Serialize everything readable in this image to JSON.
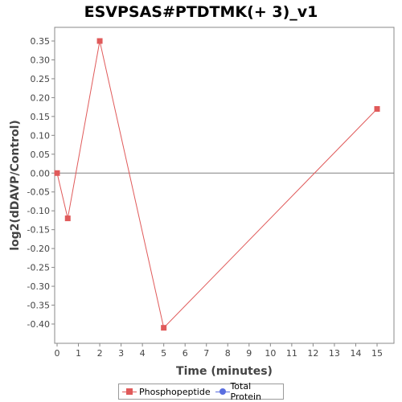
{
  "chart_data": {
    "type": "line",
    "title": "ESVPSAS#PTDTMK(+ 3)_v1",
    "xlabel": "Time (minutes)",
    "ylabel": "log2(dDAVP/Control)",
    "xlim": [
      0,
      15.6
    ],
    "ylim": [
      -0.45,
      0.38
    ],
    "x_ticks": [
      0,
      1,
      2,
      3,
      4,
      5,
      6,
      7,
      8,
      9,
      10,
      11,
      12,
      13,
      14,
      15
    ],
    "y_ticks": [
      0.35,
      0.3,
      0.25,
      0.2,
      0.15,
      0.1,
      0.05,
      0.0,
      -0.05,
      -0.1,
      -0.15,
      -0.2,
      -0.25,
      -0.3,
      -0.35,
      -0.4
    ],
    "y_tick_labels": [
      "0.35",
      "0.30",
      "0.25",
      "0.20",
      "0.15",
      "0.10",
      "0.05",
      "0.00",
      "-0.05",
      "-0.10",
      "-0.15",
      "-0.20",
      "-0.25",
      "-0.30",
      "-0.35",
      "-0.40"
    ],
    "grid": false,
    "zero_line": true,
    "legend_position": "bottom",
    "series": [
      {
        "name": "Phosphopeptide",
        "color": "#e05a5a",
        "marker": "square",
        "x": [
          0,
          0.5,
          2,
          5,
          15
        ],
        "y": [
          0.0,
          -0.12,
          0.35,
          -0.41,
          0.17
        ]
      },
      {
        "name": "Total Protein",
        "color": "#5a6ee0",
        "marker": "circle",
        "x": [],
        "y": []
      }
    ]
  }
}
